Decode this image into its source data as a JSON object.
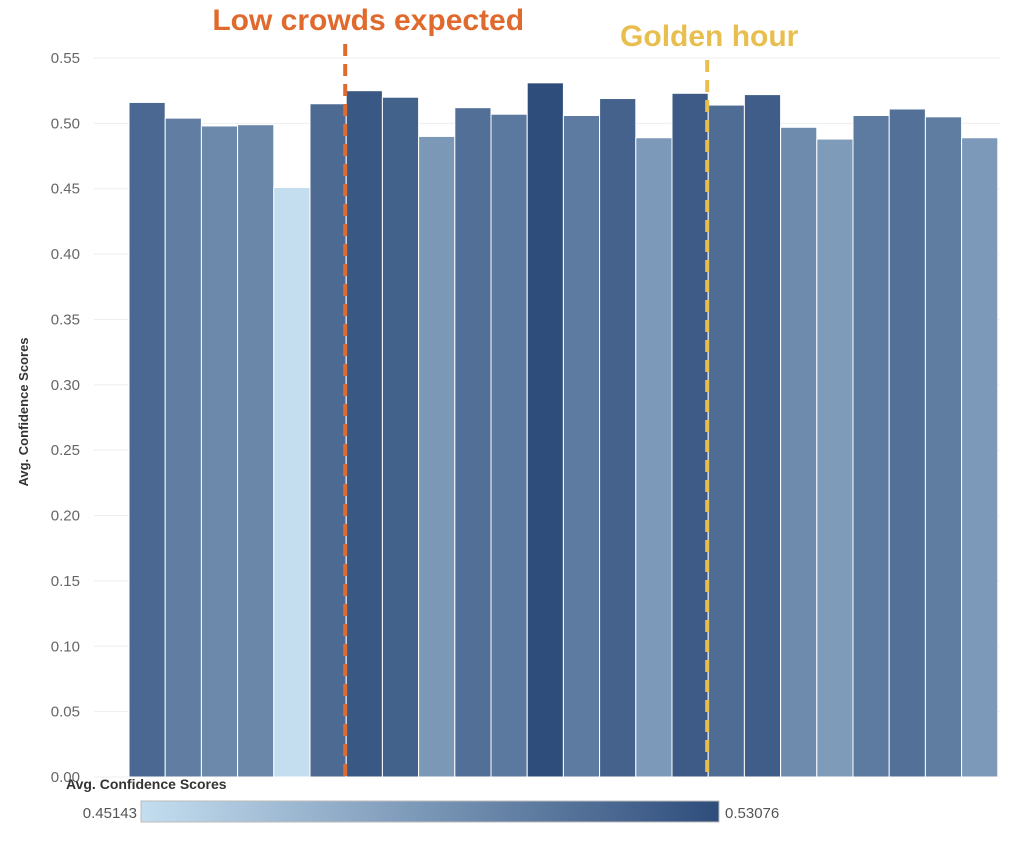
{
  "chart_data": {
    "type": "bar",
    "ylabel": "Avg. Confidence Scores",
    "xlabel": "",
    "ylim": [
      0,
      0.55
    ],
    "yticks": [
      "0.00",
      "0.05",
      "0.10",
      "0.15",
      "0.20",
      "0.25",
      "0.30",
      "0.35",
      "0.40",
      "0.45",
      "0.50",
      "0.55"
    ],
    "grid": true,
    "values": [
      0.516,
      0.504,
      0.498,
      0.499,
      0.451,
      0.515,
      0.525,
      0.52,
      0.49,
      0.512,
      0.507,
      0.531,
      0.506,
      0.519,
      0.489,
      0.523,
      0.514,
      0.522,
      0.497,
      0.488,
      0.506,
      0.511,
      0.505,
      0.489
    ],
    "color_legend": {
      "title": "Avg. Confidence Scores",
      "min_label": "0.45143",
      "max_label": "0.53076",
      "min": 0.45143,
      "max": 0.53076,
      "color_low": "#c4def0",
      "color_high": "#2e4d7b"
    },
    "annotations": [
      {
        "label": "Low crowds expected",
        "bar_index": 6,
        "color": "#e06a2d"
      },
      {
        "label": "Golden hour",
        "bar_index": 16,
        "color": "#e8bf4f"
      }
    ]
  }
}
